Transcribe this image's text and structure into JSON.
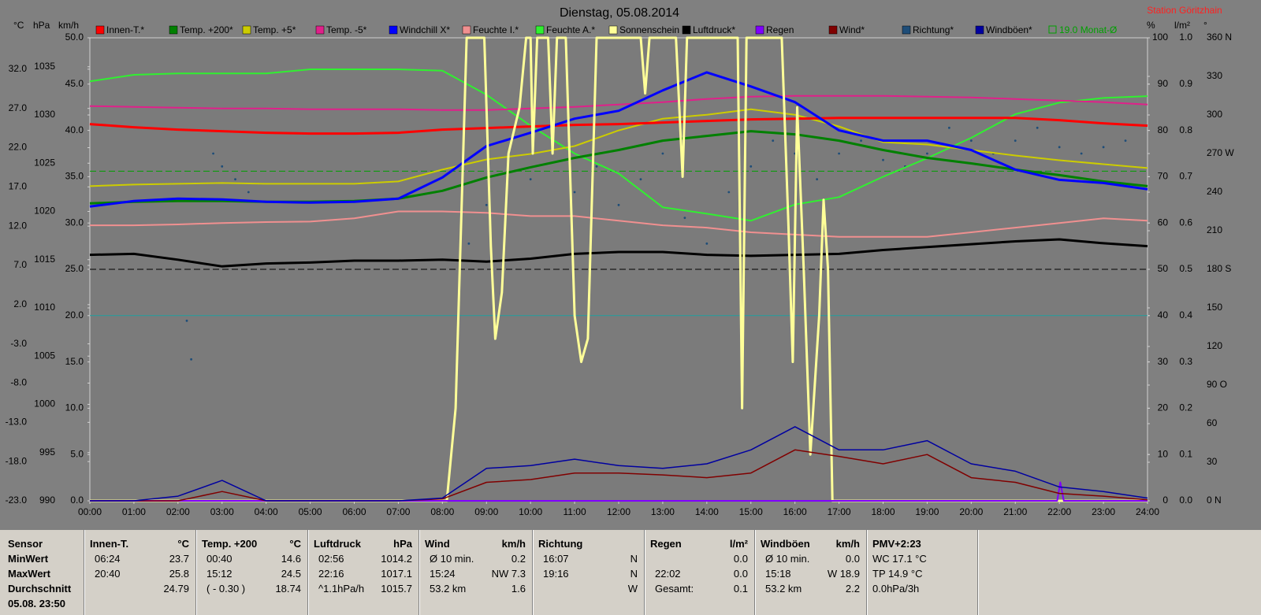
{
  "chart_data": {
    "type": "line",
    "title": "Dienstag, 05.08.2014",
    "subtitle": "Station Göritzhain",
    "x": [
      0,
      1,
      2,
      3,
      4,
      5,
      6,
      7,
      8,
      9,
      10,
      11,
      12,
      13,
      14,
      15,
      16,
      17,
      18,
      19,
      20,
      21,
      22,
      23,
      24
    ],
    "xlim": [
      0,
      24
    ],
    "xticks": [
      {
        "value": 0,
        "label": "00:00"
      },
      {
        "value": 1,
        "label": "01:00"
      },
      {
        "value": 2,
        "label": "02:00"
      },
      {
        "value": 3,
        "label": "03:00"
      },
      {
        "value": 4,
        "label": "04:00"
      },
      {
        "value": 5,
        "label": "05:00"
      },
      {
        "value": 6,
        "label": "06:00"
      },
      {
        "value": 7,
        "label": "07:00"
      },
      {
        "value": 8,
        "label": "08:00"
      },
      {
        "value": 9,
        "label": "09:00"
      },
      {
        "value": 10,
        "label": "10:00"
      },
      {
        "value": 11,
        "label": "11:00"
      },
      {
        "value": 12,
        "label": "12:00"
      },
      {
        "value": 13,
        "label": "13:00"
      },
      {
        "value": 14,
        "label": "14:00"
      },
      {
        "value": 15,
        "label": "15:00"
      },
      {
        "value": 16,
        "label": "16:00"
      },
      {
        "value": 17,
        "label": "17:00"
      },
      {
        "value": 18,
        "label": "18:00"
      },
      {
        "value": 19,
        "label": "19:00"
      },
      {
        "value": 20,
        "label": "20:00"
      },
      {
        "value": 21,
        "label": "21:00"
      },
      {
        "value": 22,
        "label": "22:00"
      },
      {
        "value": 23,
        "label": "23:00"
      },
      {
        "value": 24,
        "label": "24:00"
      }
    ],
    "axes": [
      {
        "label": "°C",
        "lim": [
          -23,
          36
        ],
        "ticks": [
          {
            "value": 32,
            "label": "32.0"
          },
          {
            "value": 27,
            "label": "27.0"
          },
          {
            "value": 22,
            "label": "22.0"
          },
          {
            "value": 17,
            "label": "17.0"
          },
          {
            "value": 12,
            "label": "12.0"
          },
          {
            "value": 7,
            "label": "7.0"
          },
          {
            "value": 2,
            "label": "2.0"
          },
          {
            "value": -3,
            "label": "-3.0"
          },
          {
            "value": -8,
            "label": "-8.0"
          },
          {
            "value": -13,
            "label": "-13.0"
          },
          {
            "value": -18,
            "label": "-18.0"
          },
          {
            "value": -23,
            "label": "-23.0"
          }
        ]
      },
      {
        "label": "hPa",
        "lim": [
          990,
          1038
        ],
        "ticks": [
          990,
          995,
          1000,
          1005,
          1010,
          1015,
          1020,
          1025,
          1030,
          1035
        ]
      },
      {
        "label": "km/h",
        "lim": [
          0,
          50
        ],
        "ticks": [
          {
            "value": 0,
            "label": "0.0"
          },
          {
            "value": 5,
            "label": "5.0"
          },
          {
            "value": 10,
            "label": "10.0"
          },
          {
            "value": 15,
            "label": "15.0"
          },
          {
            "value": 20,
            "label": "20.0"
          },
          {
            "value": 25,
            "label": "25.0"
          },
          {
            "value": 30,
            "label": "30.0"
          },
          {
            "value": 35,
            "label": "35.0"
          },
          {
            "value": 40,
            "label": "40.0"
          },
          {
            "value": 45,
            "label": "45.0"
          },
          {
            "value": 50,
            "label": "50.0"
          }
        ]
      },
      {
        "label": "%",
        "lim": [
          0,
          100
        ],
        "ticks": [
          0,
          10,
          20,
          30,
          40,
          50,
          60,
          70,
          80,
          90,
          100
        ]
      },
      {
        "label": "l/m²",
        "lim": [
          0,
          1
        ],
        "ticks": [
          {
            "value": 0,
            "label": "0.0"
          },
          0.1,
          0.2,
          0.3,
          0.4,
          0.5,
          0.6,
          0.7,
          0.8,
          0.9,
          {
            "value": 1,
            "label": "1.0"
          }
        ]
      },
      {
        "label": "°",
        "lim": [
          0,
          360
        ],
        "ticks": [
          {
            "value": 0,
            "label": "0  N"
          },
          30,
          60,
          {
            "value": 90,
            "label": "90  O"
          },
          120,
          150,
          {
            "value": 180,
            "label": "180 S"
          },
          210,
          240,
          {
            "value": 270,
            "label": "270 W"
          },
          300,
          330,
          {
            "value": 360,
            "label": "360 N"
          }
        ]
      }
    ],
    "series": [
      {
        "name": "Innen-T.*",
        "color": "#ff0000",
        "axis": 0,
        "width": 3,
        "values": [
          25.0,
          24.6,
          24.3,
          24.1,
          23.9,
          23.8,
          23.8,
          23.9,
          24.3,
          24.5,
          24.7,
          24.9,
          25.0,
          25.2,
          25.4,
          25.6,
          25.7,
          25.8,
          25.8,
          25.8,
          25.8,
          25.8,
          25.5,
          25.1,
          24.8
        ]
      },
      {
        "name": "Temp. +200*",
        "color": "#008000",
        "axis": 0,
        "width": 3,
        "values": [
          14.9,
          15.1,
          15.2,
          15.2,
          15.1,
          15.1,
          15.2,
          15.5,
          16.5,
          18.2,
          19.5,
          20.7,
          21.7,
          22.9,
          23.5,
          24.1,
          23.7,
          22.9,
          21.7,
          20.7,
          20.0,
          19.2,
          18.5,
          17.7,
          17.1
        ]
      },
      {
        "name": "Temp. +5*",
        "color": "#cccc00",
        "axis": 0,
        "width": 2,
        "values": [
          17.1,
          17.3,
          17.4,
          17.5,
          17.4,
          17.4,
          17.4,
          17.7,
          19.2,
          20.5,
          21.2,
          22.2,
          24.2,
          25.7,
          26.2,
          26.9,
          26.2,
          24.7,
          22.7,
          22.4,
          21.7,
          21.0,
          20.4,
          19.9,
          19.4
        ]
      },
      {
        "name": "Temp. -5*",
        "color": "#e0208a",
        "axis": 0,
        "width": 2,
        "values": [
          27.3,
          27.2,
          27.1,
          27.0,
          27.0,
          26.9,
          26.9,
          26.9,
          26.8,
          26.8,
          27.0,
          27.2,
          27.5,
          27.8,
          28.2,
          28.5,
          28.6,
          28.6,
          28.6,
          28.5,
          28.4,
          28.2,
          28.0,
          27.8,
          27.5
        ]
      },
      {
        "name": "Windchill X*",
        "color": "#0000ff",
        "axis": 0,
        "width": 3,
        "values": [
          14.5,
          15.2,
          15.5,
          15.4,
          15.1,
          15.0,
          15.1,
          15.5,
          18.2,
          22.2,
          23.9,
          25.7,
          26.7,
          29.3,
          31.6,
          29.8,
          27.8,
          24.2,
          22.9,
          22.9,
          21.7,
          19.2,
          17.9,
          17.5,
          16.7
        ]
      },
      {
        "name": "Feuchte I.*",
        "color": "#f09090",
        "axis": 3,
        "width": 2,
        "values": [
          59.5,
          59.5,
          59.7,
          60,
          60.2,
          60.3,
          61,
          62.5,
          62.5,
          62.2,
          61.5,
          61.5,
          60.5,
          59.5,
          59,
          58,
          57.5,
          57,
          57,
          57,
          58,
          59,
          60,
          61,
          60.5
        ]
      },
      {
        "name": "Feuchte A.*",
        "color": "#30f030",
        "axis": 3,
        "width": 2,
        "values": [
          90.6,
          92,
          92.3,
          92.3,
          92.3,
          93.2,
          93.2,
          93.2,
          92.9,
          87.7,
          81,
          75,
          70.7,
          63.4,
          62,
          60.5,
          64,
          65.6,
          70,
          74,
          78.4,
          83.5,
          86,
          87,
          87.4
        ]
      },
      {
        "name": "Sonnenschein",
        "color": "#ffff99",
        "axis": 3,
        "width": 3,
        "x": [
          0,
          8.1,
          8.3,
          8.55,
          8.95,
          9.1,
          9.2,
          9.35,
          9.5,
          9.75,
          9.9,
          10.0,
          10.05,
          10.15,
          10.4,
          10.5,
          10.6,
          10.8,
          11.0,
          11.15,
          11.3,
          11.5,
          12.5,
          12.6,
          12.7,
          13.3,
          13.45,
          13.55,
          14.7,
          14.8,
          14.9,
          15.7,
          15.85,
          15.95,
          16.05,
          16.2,
          16.35,
          16.55,
          16.65,
          16.75,
          16.85,
          24
        ],
        "values": [
          0,
          0,
          20,
          100,
          100,
          55,
          35,
          45,
          75,
          85,
          100,
          100,
          75,
          100,
          100,
          75,
          100,
          100,
          40,
          30,
          35,
          100,
          100,
          88,
          100,
          100,
          70,
          100,
          100,
          20,
          100,
          100,
          60,
          30,
          85,
          50,
          10,
          40,
          65,
          50,
          0,
          0
        ]
      },
      {
        "name": "Luftdruck*",
        "color": "#000000",
        "axis": 1,
        "width": 3,
        "values": [
          1015.5,
          1015.6,
          1015.0,
          1014.3,
          1014.6,
          1014.7,
          1014.9,
          1014.9,
          1015.0,
          1014.8,
          1015.1,
          1015.6,
          1015.8,
          1015.8,
          1015.5,
          1015.4,
          1015.5,
          1015.6,
          1016.0,
          1016.3,
          1016.6,
          1016.9,
          1017.1,
          1016.7,
          1016.4
        ]
      },
      {
        "name": "Regen",
        "color": "#8000ff",
        "axis": 4,
        "width": 2,
        "x": [
          0,
          21.95,
          22.02,
          22.1,
          24
        ],
        "values": [
          0,
          0,
          0.04,
          0,
          0
        ]
      },
      {
        "name": "Wind*",
        "color": "#800000",
        "axis": 2,
        "width": 1.5,
        "values": [
          0,
          0,
          0,
          1.0,
          0,
          0,
          0,
          0,
          0.2,
          2.0,
          2.3,
          3.0,
          3.0,
          2.8,
          2.5,
          3.0,
          5.5,
          4.8,
          4.0,
          5.0,
          2.5,
          2.0,
          0.8,
          0.5,
          0.1
        ]
      },
      {
        "name": "Richtung*",
        "color": "#1e4d78",
        "axis": 5,
        "marker": "dot",
        "x": [
          2.2,
          2.3,
          2.8,
          3.0,
          3.3,
          3.6,
          8.6,
          9.0,
          9.5,
          10.0,
          10.5,
          11.0,
          11.5,
          12.0,
          12.5,
          13.0,
          13.5,
          14.0,
          14.5,
          15.0,
          15.5,
          16.0,
          16.5,
          17.0,
          17.5,
          18.0,
          18.5,
          19.0,
          19.5,
          20.0,
          20.5,
          21.0,
          21.5,
          22.0,
          22.5,
          23.0,
          23.5
        ],
        "values": [
          140,
          110,
          270,
          260,
          250,
          240,
          200,
          230,
          270,
          250,
          280,
          240,
          260,
          230,
          250,
          270,
          220,
          200,
          240,
          260,
          280,
          270,
          250,
          270,
          280,
          265,
          260,
          270,
          290,
          280,
          270,
          280,
          290,
          275,
          270,
          275,
          280
        ]
      },
      {
        "name": "Windböen*",
        "color": "#0000a0",
        "axis": 2,
        "width": 1.5,
        "values": [
          0,
          0,
          0.5,
          2.2,
          0,
          0,
          0,
          0,
          0.3,
          3.5,
          3.8,
          4.5,
          3.8,
          3.5,
          4.0,
          5.5,
          8.0,
          5.5,
          5.5,
          6.5,
          4.0,
          3.2,
          1.5,
          1.0,
          0.3
        ]
      }
    ],
    "reference_lines": [
      {
        "label": "19.0 Monat-Ø",
        "axis": 0,
        "value": 19.0,
        "color": "#00a000",
        "dash": true
      },
      {
        "axis": 3,
        "value": 50,
        "color": "#000000",
        "dash": true
      },
      {
        "axis": 2,
        "value": 20,
        "color": "#20a0a0",
        "dash": false
      }
    ]
  },
  "table": {
    "row_header": "Sensor",
    "row_labels": [
      "MinWert",
      "MaxWert",
      "Durchschnitt",
      "05.08. 23:50"
    ],
    "groups": [
      {
        "header": "Innen-T.",
        "unit": "°C",
        "cells": [
          [
            "06:24",
            "23.7"
          ],
          [
            "20:40",
            "25.8"
          ],
          [
            null,
            "24.79"
          ]
        ]
      },
      {
        "header": "Temp. +200",
        "unit": "°C",
        "cells": [
          [
            "00:40",
            "14.6"
          ],
          [
            "15:12",
            "24.5"
          ],
          [
            "( - 0.30 )",
            "18.74"
          ]
        ]
      },
      {
        "header": "Luftdruck",
        "unit": "hPa",
        "cells": [
          [
            "02:56",
            "1014.2"
          ],
          [
            "22:16",
            "1017.1"
          ],
          [
            "^1.1hPa/h",
            "1015.7"
          ]
        ]
      },
      {
        "header": "Wind",
        "unit": "km/h",
        "cells": [
          [
            "Ø 10 min.",
            "0.2"
          ],
          [
            "15:24",
            "NW 7.3"
          ],
          [
            "53.2 km",
            "1.6"
          ]
        ]
      },
      {
        "header": "Richtung",
        "cells": [
          [
            "16:07",
            "N"
          ],
          [
            "19:16",
            "N"
          ],
          [
            null,
            "W"
          ]
        ]
      },
      {
        "header": "Regen",
        "unit": "l/m²",
        "cells": [
          [
            null,
            "0.0"
          ],
          [
            "22:02",
            "0.0"
          ],
          [
            "Gesamt:",
            "0.1"
          ]
        ]
      },
      {
        "header": "Windböen",
        "unit": "km/h",
        "cells": [
          [
            "Ø 10 min.",
            "0.0"
          ],
          [
            "15:18",
            "W 18.9"
          ],
          [
            "53.2 km",
            "2.2"
          ]
        ]
      },
      {
        "header": "PMV+2:23",
        "cells": [
          [
            "WC 17.1 °C"
          ],
          [
            "TP 14.9 °C"
          ],
          [
            "0.0hPa/3h"
          ]
        ]
      }
    ]
  }
}
